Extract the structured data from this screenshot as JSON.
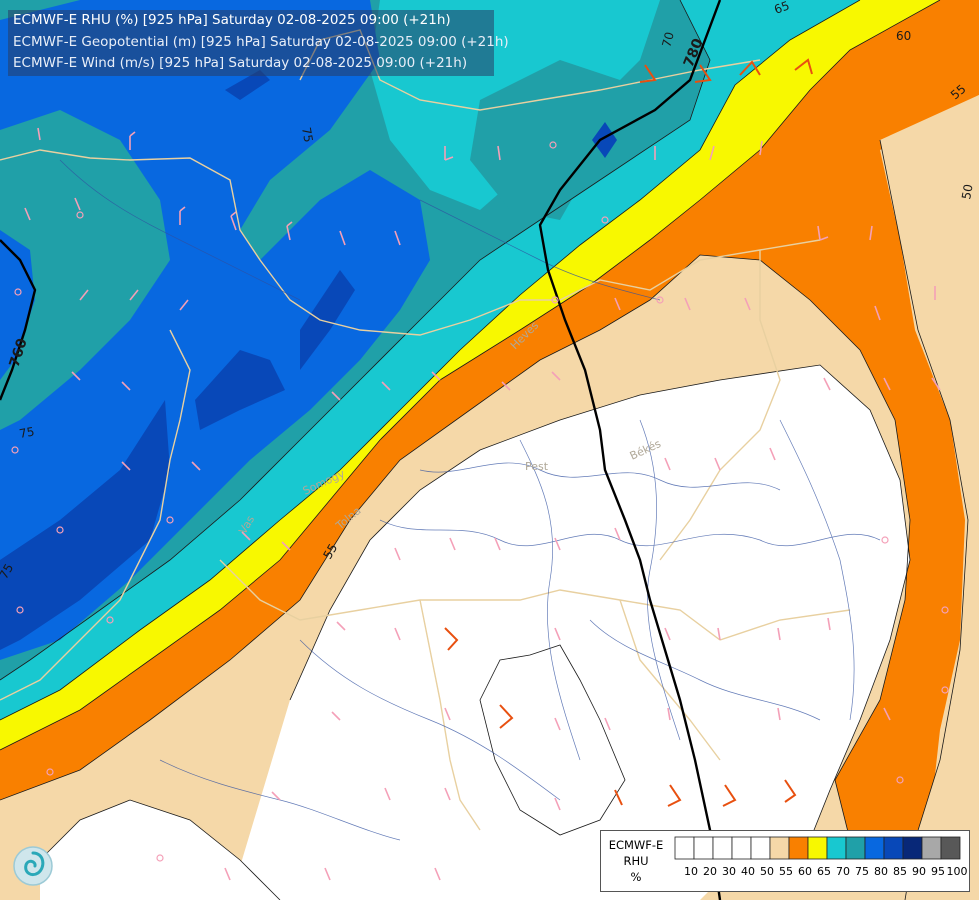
{
  "header": {
    "line1": "ECMWF-E RHU (%) [925 hPa] Saturday 02-08-2025 09:00 (+21h)",
    "line2": "ECMWF-E Geopotential (m) [925 hPa] Saturday 02-08-2025 09:00 (+21h)",
    "line3": "ECMWF-E Wind (m/s) [925 hPa] Saturday 02-08-2025 09:00 (+21h)"
  },
  "legend": {
    "model": "ECMWF-E",
    "variable": "RHU",
    "unit": "%",
    "bins": [
      {
        "label": "10",
        "color": "#ffffff"
      },
      {
        "label": "20",
        "color": "#ffffff"
      },
      {
        "label": "30",
        "color": "#ffffff"
      },
      {
        "label": "40",
        "color": "#ffffff"
      },
      {
        "label": "50",
        "color": "#ffffff"
      },
      {
        "label": "55",
        "color": "#f5d8a8"
      },
      {
        "label": "60",
        "color": "#f98000"
      },
      {
        "label": "65",
        "color": "#f8f800"
      },
      {
        "label": "70",
        "color": "#18c8d0"
      },
      {
        "label": "75",
        "color": "#20a0a8"
      },
      {
        "label": "80",
        "color": "#0868e0"
      },
      {
        "label": "85",
        "color": "#0848b8"
      },
      {
        "label": "90",
        "color": "#082878"
      },
      {
        "label": "95",
        "color": "#a8a8a8"
      },
      {
        "label": "100",
        "color": "#585858"
      }
    ]
  },
  "contour_labels": {
    "rhu": [
      "65",
      "70",
      "75",
      "75",
      "75",
      "60",
      "55",
      "50",
      "55",
      "60"
    ],
    "geopotential": [
      "780",
      "760"
    ]
  },
  "region_labels": [
    "Pest",
    "Békés",
    "Somogy",
    "Tolna",
    "Heves",
    "Vas"
  ],
  "colors": {
    "c55": "#f5d8a8",
    "c60": "#f98000",
    "c65": "#f8f800",
    "c70": "#18c8d0",
    "c75": "#20a0a8",
    "c80": "#0868e0",
    "c85": "#0848b8",
    "c90": "#082878",
    "wind_barb_light": "#f4a0b8",
    "wind_barb_strong": "#e85010",
    "border": "#e8d0a0",
    "river": "#3050a0",
    "geopotential_line": "#000000"
  }
}
